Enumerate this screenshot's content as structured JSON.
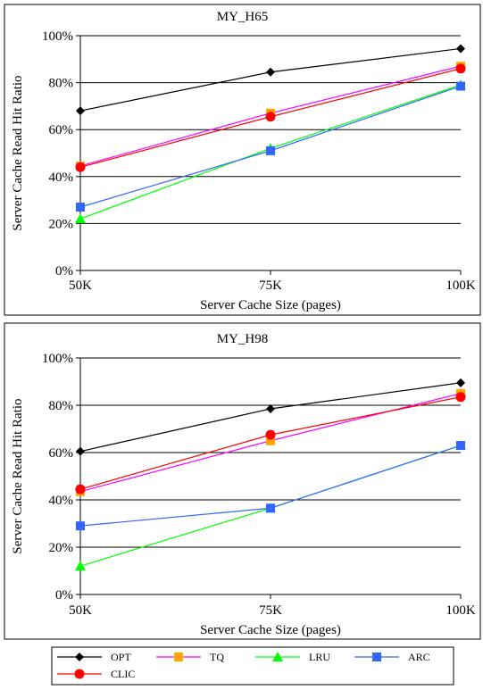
{
  "chart_data": [
    {
      "type": "line",
      "title": "MY_H65",
      "xlabel": "Server Cache Size (pages)",
      "ylabel": "Server Cache Read Hit Ratio",
      "categories": [
        "50K",
        "75K",
        "100K"
      ],
      "yticks": [
        "0%",
        "20%",
        "40%",
        "60%",
        "80%",
        "100%"
      ],
      "ylim": [
        0,
        100
      ],
      "grid": true,
      "series": [
        {
          "name": "OPT",
          "color": "#000000",
          "marker": "diamond",
          "values": [
            68,
            84.5,
            94.5
          ]
        },
        {
          "name": "TQ",
          "color": "#ff00ff",
          "marker": "square",
          "values": [
            44.5,
            67,
            87
          ]
        },
        {
          "name": "LRU",
          "color": "#00ff00",
          "marker": "triangle",
          "values": [
            22,
            52,
            79
          ]
        },
        {
          "name": "ARC",
          "color": "#3366ff",
          "marker": "square",
          "values": [
            27,
            51,
            78.5
          ]
        },
        {
          "name": "CLIC",
          "color": "#ff0000",
          "marker": "circle",
          "values": [
            44,
            65.5,
            86
          ]
        }
      ]
    },
    {
      "type": "line",
      "title": "MY_H98",
      "xlabel": "Server Cache Size (pages)",
      "ylabel": "Server Cache Read Hit Ratio",
      "categories": [
        "50K",
        "75K",
        "100K"
      ],
      "yticks": [
        "0%",
        "20%",
        "40%",
        "60%",
        "80%",
        "100%"
      ],
      "ylim": [
        0,
        100
      ],
      "grid": true,
      "series": [
        {
          "name": "OPT",
          "color": "#000000",
          "marker": "diamond",
          "values": [
            60.5,
            78.5,
            89.5
          ]
        },
        {
          "name": "TQ",
          "color": "#ff00ff",
          "marker": "square",
          "values": [
            43.5,
            65,
            85
          ]
        },
        {
          "name": "LRU",
          "color": "#00ff00",
          "marker": "triangle",
          "values": [
            12,
            36.5,
            63
          ]
        },
        {
          "name": "ARC",
          "color": "#3366ff",
          "marker": "square",
          "values": [
            29,
            36.5,
            63
          ]
        },
        {
          "name": "CLIC",
          "color": "#ff0000",
          "marker": "circle",
          "values": [
            44.5,
            67.5,
            83.5
          ]
        }
      ]
    }
  ],
  "legend": {
    "items": [
      {
        "name": "OPT",
        "color": "#000000",
        "marker": "diamond"
      },
      {
        "name": "TQ",
        "color": "#ff00ff",
        "marker": "square",
        "marker_color": "#ffa500"
      },
      {
        "name": "LRU",
        "color": "#00ff00",
        "marker": "triangle"
      },
      {
        "name": "ARC",
        "color": "#3366ff",
        "marker": "square"
      },
      {
        "name": "CLIC",
        "color": "#ff0000",
        "marker": "circle"
      }
    ]
  }
}
